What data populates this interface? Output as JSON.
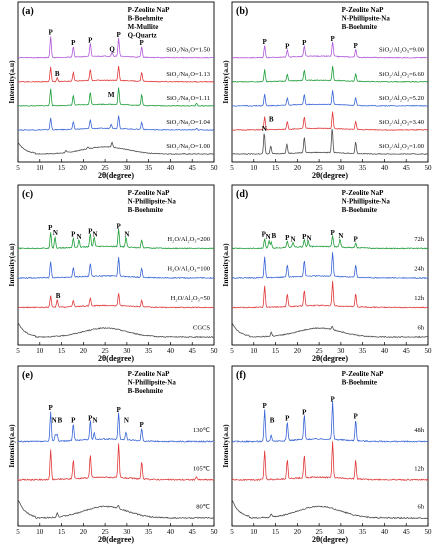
{
  "figure": {
    "background": "#ffffff"
  },
  "chart_data": [
    {
      "type": "line",
      "panel_label": "(a)",
      "xlabel": "2θ(degree)",
      "ylabel": "Intensity(a.u)",
      "xlim": [
        5,
        50
      ],
      "x_ticks": [
        5,
        10,
        15,
        20,
        25,
        30,
        35,
        40,
        45,
        50
      ],
      "legend": [
        "P-Zeolite NaP",
        "B-Boehmite",
        "M-Mullite",
        "Q-Quartz"
      ],
      "series": [
        {
          "name": "SiO₂/Na₂O=1.00",
          "color": "#4d4d4d",
          "offset": 0,
          "amorphous": true,
          "peaks": [
            [
              16.0,
              0.15
            ],
            [
              21.0,
              0.12
            ],
            [
              26.6,
              0.35
            ]
          ]
        },
        {
          "name": "SiO₂/Na₂O=1.04",
          "color": "#3a66d6",
          "offset": 1,
          "peaks": [
            [
              12.5,
              0.9
            ],
            [
              17.7,
              0.55
            ],
            [
              21.6,
              0.7
            ],
            [
              28.1,
              1.0
            ],
            [
              33.4,
              0.55
            ],
            [
              26.4,
              0.35
            ],
            [
              46.0,
              0.15
            ]
          ]
        },
        {
          "name": "SiO₂/Na₂O=1.11",
          "color": "#1e9e3a",
          "offset": 2,
          "peaks": [
            [
              12.5,
              1.3
            ],
            [
              17.7,
              0.75
            ],
            [
              21.6,
              0.95
            ],
            [
              28.1,
              1.3
            ],
            [
              33.4,
              0.8
            ],
            [
              46.0,
              0.2
            ]
          ]
        },
        {
          "name": "SiO₂/Na₂O=1.13",
          "color": "#e03a3a",
          "offset": 3,
          "peaks": [
            [
              12.5,
              1.1
            ],
            [
              14.0,
              0.3
            ],
            [
              17.7,
              0.65
            ],
            [
              21.6,
              0.85
            ],
            [
              28.1,
              1.1
            ],
            [
              33.4,
              0.7
            ]
          ]
        },
        {
          "name": "SiO₂/Na₂O=1.50",
          "color": "#b05ad8",
          "offset": 4,
          "peaks": [
            [
              12.5,
              1.6
            ],
            [
              17.7,
              0.8
            ],
            [
              21.6,
              1.0
            ],
            [
              26.6,
              0.3
            ],
            [
              28.1,
              1.4
            ],
            [
              33.4,
              0.8
            ]
          ]
        }
      ],
      "peak_labels": [
        {
          "text": "P",
          "x": 12.5,
          "row": 4
        },
        {
          "text": "P",
          "x": 17.7,
          "row": 4
        },
        {
          "text": "P",
          "x": 21.6,
          "row": 4
        },
        {
          "text": "Q",
          "x": 26.6,
          "row": 4
        },
        {
          "text": "P",
          "x": 28.1,
          "row": 4
        },
        {
          "text": "P",
          "x": 33.4,
          "row": 4
        },
        {
          "text": "B",
          "x": 14.0,
          "row": 3
        },
        {
          "text": "M",
          "x": 26.4,
          "row": 2
        }
      ]
    },
    {
      "type": "line",
      "panel_label": "(b)",
      "xlabel": "2θ(degree)",
      "ylabel": "Intensity(a.u)",
      "xlim": [
        5,
        50
      ],
      "x_ticks": [
        5,
        10,
        15,
        20,
        25,
        30,
        35,
        40,
        45,
        50
      ],
      "legend": [
        "P-Zeolite NaP",
        "N-Phillipsite-Na",
        "B-Boehmite"
      ],
      "series": [
        {
          "name": "SiO₂/Al₂O₃=1.00",
          "color": "#4d4d4d",
          "offset": 0,
          "peaks": [
            [
              12.4,
              1.6
            ],
            [
              13.9,
              0.6
            ],
            [
              17.6,
              0.7
            ],
            [
              21.6,
              1.2
            ],
            [
              28.0,
              1.9
            ],
            [
              33.4,
              0.9
            ]
          ]
        },
        {
          "name": "SiO₂/Al₂O₃=3.40",
          "color": "#e03a3a",
          "offset": 1,
          "peaks": [
            [
              12.5,
              1.0
            ],
            [
              17.7,
              0.6
            ],
            [
              21.6,
              0.9
            ],
            [
              28.1,
              1.3
            ],
            [
              33.4,
              0.6
            ]
          ]
        },
        {
          "name": "SiO₂/Al₂O₃=5.20",
          "color": "#3a66d6",
          "offset": 2,
          "peaks": [
            [
              12.5,
              0.9
            ],
            [
              17.7,
              0.55
            ],
            [
              21.6,
              0.8
            ],
            [
              28.1,
              1.1
            ],
            [
              33.4,
              0.6
            ]
          ]
        },
        {
          "name": "SiO₂/Al₂O₃=6.60",
          "color": "#1e9e3a",
          "offset": 3,
          "peaks": [
            [
              12.5,
              0.9
            ],
            [
              17.7,
              0.55
            ],
            [
              21.6,
              0.8
            ],
            [
              28.1,
              1.1
            ],
            [
              33.4,
              0.6
            ]
          ]
        },
        {
          "name": "SiO₂/Al₂O₃=9.00",
          "color": "#b05ad8",
          "offset": 4,
          "peaks": [
            [
              12.5,
              0.9
            ],
            [
              17.7,
              0.55
            ],
            [
              21.6,
              0.8
            ],
            [
              28.1,
              1.1
            ],
            [
              33.4,
              0.6
            ]
          ]
        }
      ],
      "peak_labels": [
        {
          "text": "P",
          "x": 12.5,
          "row": 4
        },
        {
          "text": "P",
          "x": 17.7,
          "row": 4
        },
        {
          "text": "P",
          "x": 21.6,
          "row": 4
        },
        {
          "text": "P",
          "x": 28.1,
          "row": 4
        },
        {
          "text": "P",
          "x": 33.4,
          "row": 4
        },
        {
          "text": "B",
          "x": 14.0,
          "row": 1
        },
        {
          "text": "N",
          "x": 12.4,
          "row": 0
        }
      ]
    },
    {
      "type": "line",
      "panel_label": "(c)",
      "xlabel": "2θ(degree)",
      "ylabel": "Intensity(a.u)",
      "xlim": [
        5,
        50
      ],
      "x_ticks": [
        5,
        10,
        15,
        20,
        25,
        30,
        35,
        40,
        45,
        50
      ],
      "legend": [
        "P-Zeolite NaP",
        "N-Phillipsite-Na",
        "B-Boehmite"
      ],
      "series": [
        {
          "name": "CGCS",
          "color": "#4d4d4d",
          "offset": 0,
          "amorphous": true,
          "peaks": []
        },
        {
          "name": "H₂O/Al₂O₃=50",
          "color": "#e03a3a",
          "offset": 1,
          "peaks": [
            [
              12.5,
              0.7
            ],
            [
              14.0,
              0.45
            ],
            [
              17.7,
              0.4
            ],
            [
              21.6,
              0.5
            ],
            [
              28.1,
              0.8
            ],
            [
              33.4,
              0.4
            ]
          ]
        },
        {
          "name": "H₂O/Al₂O₃=100",
          "color": "#3a66d6",
          "offset": 2,
          "peaks": [
            [
              12.5,
              1.0
            ],
            [
              17.7,
              0.6
            ],
            [
              21.6,
              0.8
            ],
            [
              28.1,
              1.2
            ],
            [
              33.4,
              0.6
            ]
          ]
        },
        {
          "name": "H₂O/Al₂O₃=200",
          "color": "#1e9e3a",
          "offset": 3,
          "peaks": [
            [
              12.5,
              1.0
            ],
            [
              13.5,
              0.7
            ],
            [
              17.7,
              0.6
            ],
            [
              19.0,
              0.45
            ],
            [
              21.6,
              0.8
            ],
            [
              22.5,
              0.6
            ],
            [
              28.1,
              1.1
            ],
            [
              29.8,
              0.6
            ],
            [
              33.4,
              0.5
            ]
          ]
        }
      ],
      "peak_labels": [
        {
          "text": "P",
          "x": 12.4,
          "row": 3
        },
        {
          "text": "N",
          "x": 13.6,
          "row": 3
        },
        {
          "text": "P",
          "x": 17.7,
          "row": 3
        },
        {
          "text": "N",
          "x": 19.0,
          "row": 3
        },
        {
          "text": "P",
          "x": 21.6,
          "row": 3
        },
        {
          "text": "N",
          "x": 22.7,
          "row": 3
        },
        {
          "text": "P",
          "x": 28.1,
          "row": 3
        },
        {
          "text": "N",
          "x": 30.0,
          "row": 3
        },
        {
          "text": "B",
          "x": 14.2,
          "row": 1
        }
      ]
    },
    {
      "type": "line",
      "panel_label": "(d)",
      "xlabel": "2θ(degree)",
      "ylabel": "Intensity(a.u)",
      "xlim": [
        5,
        50
      ],
      "x_ticks": [
        5,
        10,
        15,
        20,
        25,
        30,
        35,
        40,
        45,
        50
      ],
      "legend": [
        "P-Zeolite NaP",
        "N-Phillipsite-Na",
        "B-Boehmite"
      ],
      "series": [
        {
          "name": "6h",
          "color": "#4d4d4d",
          "offset": 0,
          "amorphous": true,
          "peaks": [
            [
              14.0,
              0.25
            ],
            [
              28.0,
              0.2
            ]
          ]
        },
        {
          "name": "12h",
          "color": "#e03a3a",
          "offset": 1,
          "peaks": [
            [
              12.5,
              1.3
            ],
            [
              17.7,
              0.8
            ],
            [
              21.6,
              1.0
            ],
            [
              28.1,
              1.5
            ],
            [
              33.4,
              0.8
            ]
          ]
        },
        {
          "name": "24h",
          "color": "#3a66d6",
          "offset": 2,
          "peaks": [
            [
              12.5,
              1.3
            ],
            [
              17.7,
              0.8
            ],
            [
              21.6,
              1.0
            ],
            [
              28.1,
              1.5
            ],
            [
              33.4,
              0.8
            ]
          ]
        },
        {
          "name": "72h",
          "color": "#1e9e3a",
          "offset": 3,
          "peaks": [
            [
              12.5,
              0.6
            ],
            [
              13.5,
              0.45
            ],
            [
              14.0,
              0.35
            ],
            [
              17.7,
              0.4
            ],
            [
              19.0,
              0.3
            ],
            [
              21.6,
              0.45
            ],
            [
              22.5,
              0.35
            ],
            [
              28.1,
              0.7
            ],
            [
              29.8,
              0.5
            ],
            [
              33.4,
              0.3
            ]
          ]
        }
      ],
      "peak_labels": [
        {
          "text": "P",
          "x": 12.3,
          "row": 3
        },
        {
          "text": "N",
          "x": 13.3,
          "row": 3
        },
        {
          "text": "B",
          "x": 14.6,
          "row": 3
        },
        {
          "text": "P",
          "x": 17.7,
          "row": 3
        },
        {
          "text": "N",
          "x": 19.0,
          "row": 3
        },
        {
          "text": "P",
          "x": 21.6,
          "row": 3
        },
        {
          "text": "N",
          "x": 22.7,
          "row": 3
        },
        {
          "text": "P",
          "x": 28.1,
          "row": 3
        },
        {
          "text": "N",
          "x": 30.0,
          "row": 3
        },
        {
          "text": "P",
          "x": 33.4,
          "row": 3
        }
      ]
    },
    {
      "type": "line",
      "panel_label": "(e)",
      "xlabel": "2θ(degree)",
      "ylabel": "Intensity(a.u)",
      "xlim": [
        5,
        50
      ],
      "x_ticks": [
        5,
        10,
        15,
        20,
        25,
        30,
        35,
        40,
        45,
        50
      ],
      "legend": [
        "P-Zeolite NaP",
        "N-Phillipsite-Na",
        "B-Boehmite"
      ],
      "series": [
        {
          "name": "80℃",
          "color": "#4d4d4d",
          "offset": 0,
          "amorphous": true,
          "peaks": [
            [
              14.0,
              0.2
            ],
            [
              28.0,
              0.15
            ]
          ]
        },
        {
          "name": "105℃",
          "color": "#e03a3a",
          "offset": 1,
          "peaks": [
            [
              12.5,
              1.4
            ],
            [
              17.7,
              0.9
            ],
            [
              21.6,
              1.1
            ],
            [
              28.1,
              1.6
            ],
            [
              33.4,
              0.8
            ],
            [
              46.0,
              0.15
            ]
          ]
        },
        {
          "name": "130℃",
          "color": "#3a66d6",
          "offset": 2,
          "peaks": [
            [
              12.5,
              1.4
            ],
            [
              13.6,
              0.35
            ],
            [
              14.0,
              0.3
            ],
            [
              17.7,
              0.8
            ],
            [
              21.6,
              0.9
            ],
            [
              22.5,
              0.3
            ],
            [
              28.1,
              1.3
            ],
            [
              29.8,
              0.4
            ],
            [
              33.4,
              0.6
            ]
          ]
        }
      ],
      "peak_labels": [
        {
          "text": "P",
          "x": 12.5,
          "row": 2
        },
        {
          "text": "P",
          "x": 17.7,
          "row": 2
        },
        {
          "text": "P",
          "x": 21.6,
          "row": 2
        },
        {
          "text": "P",
          "x": 28.1,
          "row": 2
        },
        {
          "text": "P",
          "x": 33.4,
          "row": 2
        },
        {
          "text": "N",
          "x": 13.3,
          "row": 2,
          "low": true
        },
        {
          "text": "B",
          "x": 14.6,
          "row": 2,
          "low": true
        },
        {
          "text": "N",
          "x": 22.7,
          "row": 2,
          "low": true
        },
        {
          "text": "N",
          "x": 29.9,
          "row": 2,
          "low": true
        }
      ]
    },
    {
      "type": "line",
      "panel_label": "(f)",
      "xlabel": "2θ(degree)",
      "ylabel": "Intensity(a.u)",
      "xlim": [
        5,
        50
      ],
      "x_ticks": [
        5,
        10,
        15,
        20,
        25,
        30,
        35,
        40,
        45,
        50
      ],
      "legend": [
        "P-Zeolite NaP",
        "B-Boehmite"
      ],
      "series": [
        {
          "name": "6h",
          "color": "#4d4d4d",
          "offset": 0,
          "amorphous": true,
          "peaks": [
            [
              14.0,
              0.15
            ]
          ]
        },
        {
          "name": "12h",
          "color": "#e03a3a",
          "offset": 1,
          "peaks": [
            [
              12.5,
              1.4
            ],
            [
              17.7,
              0.9
            ],
            [
              21.6,
              1.1
            ],
            [
              28.1,
              1.7
            ],
            [
              33.4,
              0.9
            ]
          ]
        },
        {
          "name": "48h",
          "color": "#3a66d6",
          "offset": 2,
          "peaks": [
            [
              12.5,
              1.5
            ],
            [
              14.0,
              0.3
            ],
            [
              17.7,
              0.9
            ],
            [
              21.6,
              1.2
            ],
            [
              28.1,
              1.8
            ],
            [
              33.4,
              1.0
            ]
          ]
        }
      ],
      "peak_labels": [
        {
          "text": "P",
          "x": 12.5,
          "row": 2
        },
        {
          "text": "B",
          "x": 14.2,
          "row": 2,
          "low": true
        },
        {
          "text": "P",
          "x": 17.7,
          "row": 2
        },
        {
          "text": "P",
          "x": 21.6,
          "row": 2
        },
        {
          "text": "P",
          "x": 28.1,
          "row": 2
        },
        {
          "text": "P",
          "x": 33.4,
          "row": 2
        }
      ]
    }
  ]
}
